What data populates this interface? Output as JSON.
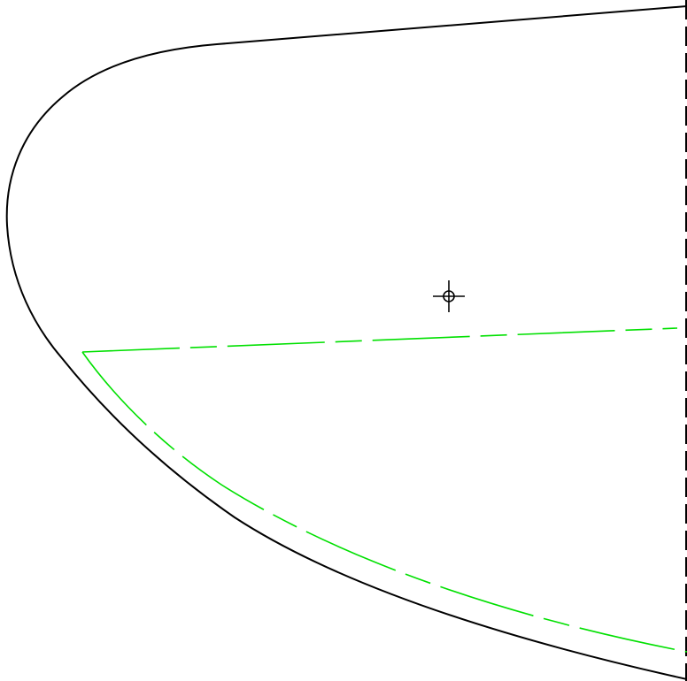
{
  "diagram": {
    "background": "#ffffff",
    "colors": {
      "outline": "#000000",
      "inner_region": "#00e000",
      "marker": "#000000"
    },
    "elements": [
      {
        "name": "outer-boundary-curve",
        "kind": "solid-curve",
        "color": "outline"
      },
      {
        "name": "centerline-dashed",
        "kind": "dashed-line",
        "color": "outline"
      },
      {
        "name": "inner-region-top-edge",
        "kind": "dashed-line",
        "color": "inner_region"
      },
      {
        "name": "inner-region-bottom-edge",
        "kind": "dashed-curve",
        "color": "inner_region"
      },
      {
        "name": "center-crosshair-icon",
        "kind": "crosshair",
        "color": "marker"
      }
    ]
  }
}
